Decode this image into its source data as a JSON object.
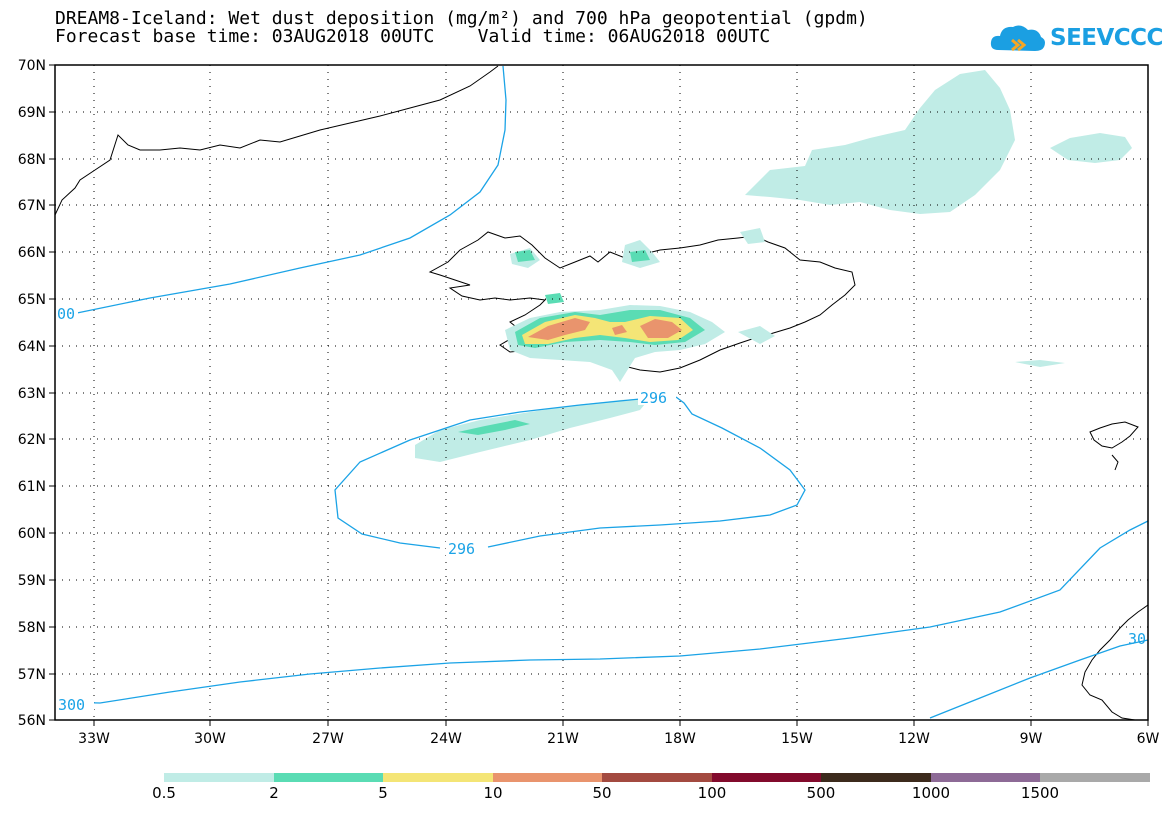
{
  "title": {
    "line1": "DREAM8-Iceland: Wet dust deposition (mg/m²) and 700 hPa geopotential (gpdm)",
    "line2": "Forecast base time: 03AUG2018 00UTC    Valid time: 06AUG2018 00UTC"
  },
  "logo": {
    "text": "SEEVCCC",
    "icon": "cloud-logo-icon",
    "color": "#1b9fe2"
  },
  "map": {
    "lat_labels": [
      "70N",
      "69N",
      "68N",
      "67N",
      "66N",
      "65N",
      "64N",
      "63N",
      "62N",
      "61N",
      "60N",
      "59N",
      "58N",
      "57N",
      "56N"
    ],
    "lon_labels": [
      "33W",
      "30W",
      "27W",
      "24W",
      "21W",
      "18W",
      "15W",
      "12W",
      "9W",
      "6W"
    ],
    "contour_labels": [
      {
        "text": "00",
        "color": "#1ba3e6"
      },
      {
        "text": "296",
        "color": "#1ba3e6"
      },
      {
        "text": "296",
        "color": "#1ba3e6"
      },
      {
        "text": "300",
        "color": "#1ba3e6"
      },
      {
        "text": "30",
        "color": "#1ba3e6"
      }
    ]
  },
  "legend": {
    "swatches": [
      {
        "color": "#c0ece6"
      },
      {
        "color": "#5adcb4"
      },
      {
        "color": "#f4e576"
      },
      {
        "color": "#e9946d"
      },
      {
        "color": "#a34a40"
      },
      {
        "color": "#820a2c"
      },
      {
        "color": "#3c2a1c"
      },
      {
        "color": "#8d6a96"
      },
      {
        "color": "#a9a9a9"
      }
    ],
    "labels": [
      "0.5",
      "2",
      "5",
      "10",
      "50",
      "100",
      "500",
      "1000",
      "1500"
    ]
  }
}
